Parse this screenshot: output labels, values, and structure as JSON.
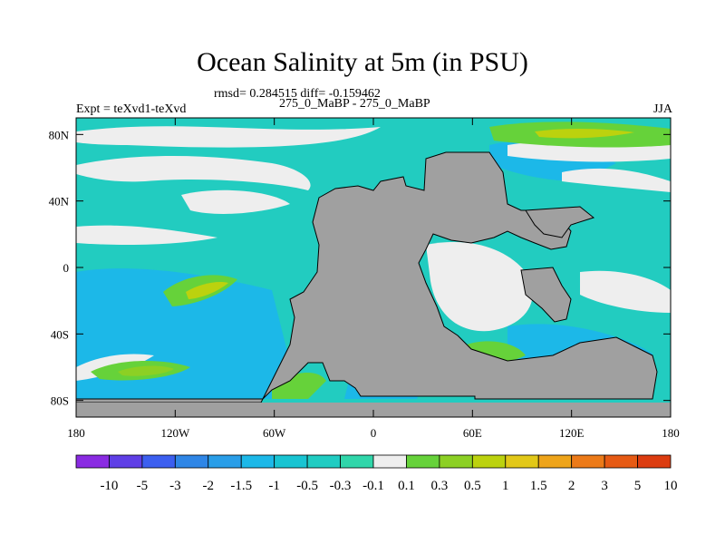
{
  "title": "Ocean Salinity at 5m (in PSU)",
  "stats_line": "rmsd= 0.284515  diff= -0.159462",
  "subtitle": "275_0_MaBP - 275_0_MaBP",
  "left_label": "Expt = teXvd1-teXvd",
  "right_label": "JJA",
  "map": {
    "lon_range": [
      -180,
      180
    ],
    "lat_range": [
      -90,
      90
    ],
    "x_ticks": [
      "180",
      "120W",
      "60W",
      "0",
      "60E",
      "120E",
      "180"
    ],
    "y_ticks": [
      "80N",
      "40N",
      "0",
      "40S",
      "80S"
    ],
    "land_color": "#a0a0a0",
    "ocean_base_color": "#22ccc0"
  },
  "colorbar": {
    "labels": [
      "-10",
      "-5",
      "-3",
      "-2",
      "-1.5",
      "-1",
      "-0.5",
      "-0.3",
      "-0.1",
      "0.1",
      "0.3",
      "0.5",
      "1",
      "1.5",
      "2",
      "3",
      "5",
      "10"
    ],
    "colors": [
      "#8a2be2",
      "#5f3fe6",
      "#3c5ff0",
      "#2f86e6",
      "#2a9ee8",
      "#1cb8e8",
      "#18c4d2",
      "#20ccc2",
      "#30d6aa",
      "#eeeeee",
      "#66d23a",
      "#8cd024",
      "#bcd20e",
      "#e2c818",
      "#eea41a",
      "#ec7a18",
      "#e65a14",
      "#dc3c10"
    ]
  }
}
